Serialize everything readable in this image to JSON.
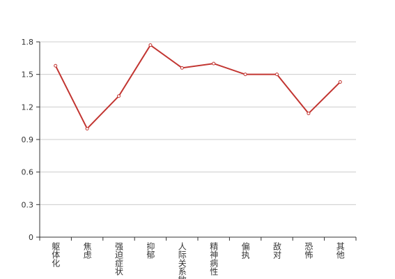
{
  "chart_data": {
    "type": "line",
    "categories": [
      "躯体化",
      "焦虑",
      "强迫症状",
      "抑郁",
      "人际关系敏感",
      "精神病性",
      "偏执",
      "敌对",
      "恐怖",
      "其他"
    ],
    "values": [
      1.58,
      1.0,
      1.3,
      1.77,
      1.56,
      1.6,
      1.5,
      1.5,
      1.14,
      1.43
    ],
    "color": "#c23531",
    "ylim": [
      0,
      1.8
    ],
    "yticks": [
      0,
      {
        "value": 0.3,
        "label": "0.3"
      },
      {
        "value": 0.6,
        "label": "0.6"
      },
      {
        "value": 0.9,
        "label": "0.9"
      },
      {
        "value": 1.2,
        "label": "1.2"
      },
      {
        "value": 1.5,
        "label": "1.5"
      },
      {
        "value": 1.8,
        "label": "1.8"
      }
    ],
    "grid": true
  }
}
